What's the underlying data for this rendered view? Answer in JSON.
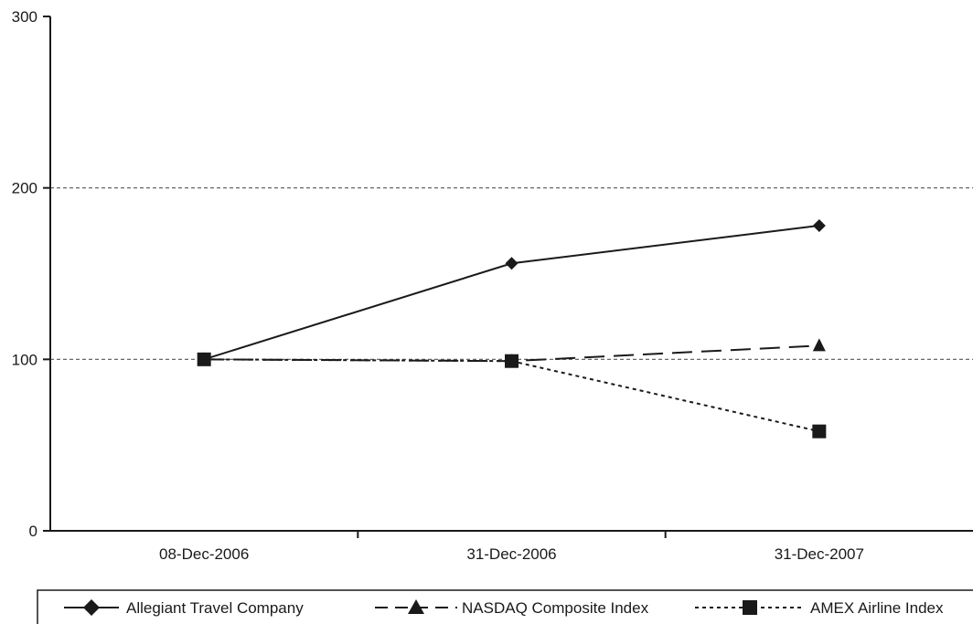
{
  "chart_data": {
    "type": "line",
    "categories": [
      "08-Dec-2006",
      "31-Dec-2006",
      "31-Dec-2007"
    ],
    "y_ticks": [
      "0",
      "100",
      "200",
      "300"
    ],
    "ylim": [
      0,
      300
    ],
    "grid": "horizontal dashed at 100 and 200",
    "legend_position": "bottom",
    "series": [
      {
        "name": "Allegiant Travel Company",
        "marker": "diamond",
        "line": "solid",
        "values": [
          100,
          156,
          178
        ]
      },
      {
        "name": "NASDAQ Composite Index",
        "marker": "triangle",
        "line": "dashed",
        "values": [
          100,
          99,
          108
        ]
      },
      {
        "name": "AMEX Airline Index",
        "marker": "square",
        "line": "dotted",
        "values": [
          100,
          99,
          58
        ]
      }
    ],
    "colors": {
      "series": "#1a1a1a",
      "grid": "#555555",
      "axis": "#1a1a1a"
    }
  }
}
